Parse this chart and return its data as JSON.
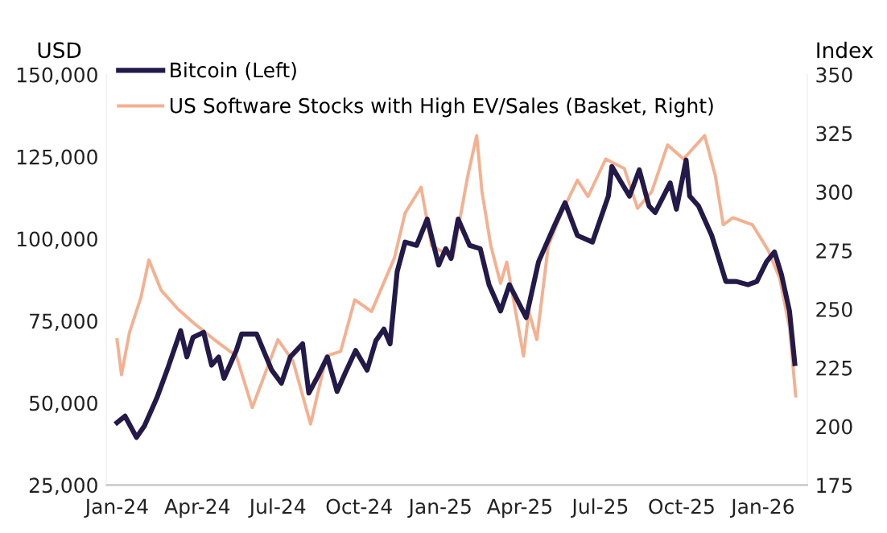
{
  "chart_data": {
    "type": "line",
    "ylabel": "USD",
    "y2label": "Index",
    "xlim": [
      "2023-12-20",
      "2026-02-20"
    ],
    "xticks": [
      {
        "value": "2024-01-01",
        "label": "Jan-24"
      },
      {
        "value": "2024-04-01",
        "label": "Apr-24"
      },
      {
        "value": "2024-07-01",
        "label": "Jul-24"
      },
      {
        "value": "2024-10-01",
        "label": "Oct-24"
      },
      {
        "value": "2025-01-01",
        "label": "Jan-25"
      },
      {
        "value": "2025-04-01",
        "label": "Apr-25"
      },
      {
        "value": "2025-07-01",
        "label": "Jul-25"
      },
      {
        "value": "2025-10-01",
        "label": "Oct-25"
      },
      {
        "value": "2026-01-01",
        "label": "Jan-26"
      }
    ],
    "ylim": [
      25000,
      150000
    ],
    "yticks": [
      {
        "value": 25000,
        "label": "25,000"
      },
      {
        "value": 50000,
        "label": "50,000"
      },
      {
        "value": 75000,
        "label": "75,000"
      },
      {
        "value": 100000,
        "label": "100,000"
      },
      {
        "value": 125000,
        "label": "125,000"
      },
      {
        "value": 150000,
        "label": "150,000"
      }
    ],
    "y2lim": [
      175,
      350
    ],
    "y2ticks": [
      175,
      200,
      225,
      250,
      275,
      300,
      325,
      350
    ],
    "legend": "top left",
    "grid": false,
    "series": [
      {
        "name": "Bitcoin (Left)",
        "color": "#241a4a",
        "x": [
          "2024-01-01",
          "2024-01-10",
          "2024-01-23",
          "2024-02-01",
          "2024-02-15",
          "2024-02-28",
          "2024-03-13",
          "2024-03-20",
          "2024-03-27",
          "2024-04-08",
          "2024-04-17",
          "2024-04-25",
          "2024-05-01",
          "2024-05-15",
          "2024-05-21",
          "2024-06-07",
          "2024-06-24",
          "2024-07-05",
          "2024-07-15",
          "2024-07-29",
          "2024-08-05",
          "2024-08-15",
          "2024-08-26",
          "2024-09-06",
          "2024-09-15",
          "2024-09-27",
          "2024-10-10",
          "2024-10-20",
          "2024-10-29",
          "2024-11-05",
          "2024-11-13",
          "2024-11-22",
          "2024-12-05",
          "2024-12-17",
          "2024-12-30",
          "2025-01-07",
          "2025-01-13",
          "2025-01-21",
          "2025-02-03",
          "2025-02-15",
          "2025-02-25",
          "2025-03-10",
          "2025-03-20",
          "2025-04-08",
          "2025-04-22",
          "2025-05-10",
          "2025-05-22",
          "2025-06-05",
          "2025-06-22",
          "2025-07-10",
          "2025-07-14",
          "2025-07-25",
          "2025-08-03",
          "2025-08-14",
          "2025-08-25",
          "2025-09-01",
          "2025-09-18",
          "2025-09-25",
          "2025-10-06",
          "2025-10-10",
          "2025-10-20",
          "2025-11-04",
          "2025-11-20",
          "2025-12-02",
          "2025-12-15",
          "2025-12-25",
          "2026-01-05",
          "2026-01-14",
          "2026-01-22",
          "2026-01-31",
          "2026-02-06"
        ],
        "values": [
          44000,
          46000,
          39500,
          43000,
          51500,
          61000,
          72000,
          64000,
          70000,
          71500,
          61500,
          64000,
          57500,
          66000,
          71000,
          71000,
          60000,
          56000,
          64000,
          68000,
          53000,
          58000,
          64000,
          53500,
          59000,
          66000,
          60000,
          69000,
          72500,
          68000,
          90000,
          99000,
          98000,
          106000,
          92000,
          97000,
          94000,
          106000,
          98000,
          97000,
          86000,
          78000,
          86000,
          76000,
          93000,
          104000,
          111000,
          101000,
          99000,
          113000,
          122000,
          117000,
          113000,
          121000,
          110000,
          108000,
          117000,
          109000,
          124000,
          113000,
          110000,
          101000,
          87000,
          87000,
          86000,
          87000,
          93000,
          96000,
          89000,
          78000,
          62000
        ]
      },
      {
        "name": "US Software Stocks with High EV/Sales (Basket, Right)",
        "color": "#f7b08f",
        "axis": "y2",
        "x": [
          "2024-01-01",
          "2024-01-06",
          "2024-01-15",
          "2024-01-28",
          "2024-02-06",
          "2024-02-20",
          "2024-03-10",
          "2024-03-28",
          "2024-04-20",
          "2024-05-15",
          "2024-06-02",
          "2024-07-01",
          "2024-07-18",
          "2024-08-07",
          "2024-08-25",
          "2024-09-10",
          "2024-09-26",
          "2024-10-15",
          "2024-11-10",
          "2024-11-22",
          "2024-12-10",
          "2024-12-22",
          "2025-01-15",
          "2025-02-01",
          "2025-02-11",
          "2025-02-17",
          "2025-02-27",
          "2025-03-10",
          "2025-03-17",
          "2025-04-05",
          "2025-04-11",
          "2025-04-20",
          "2025-05-03",
          "2025-05-18",
          "2025-06-05",
          "2025-06-17",
          "2025-07-07",
          "2025-07-28",
          "2025-08-12",
          "2025-08-28",
          "2025-09-15",
          "2025-10-03",
          "2025-10-27",
          "2025-11-08",
          "2025-11-17",
          "2025-11-28",
          "2025-12-20",
          "2026-01-07",
          "2026-01-20",
          "2026-01-31",
          "2026-02-07"
        ],
        "values": [
          237,
          222,
          240,
          255,
          271,
          258,
          250,
          244,
          237,
          230,
          208,
          237,
          228,
          201,
          230,
          232,
          254,
          249,
          272,
          291,
          302,
          277,
          272,
          307,
          324,
          300,
          277,
          261,
          270,
          230,
          249,
          237,
          277,
          291,
          305,
          298,
          314,
          310,
          293,
          300,
          320,
          314,
          324,
          307,
          286,
          289,
          286,
          275,
          263,
          242,
          213
        ]
      }
    ]
  }
}
